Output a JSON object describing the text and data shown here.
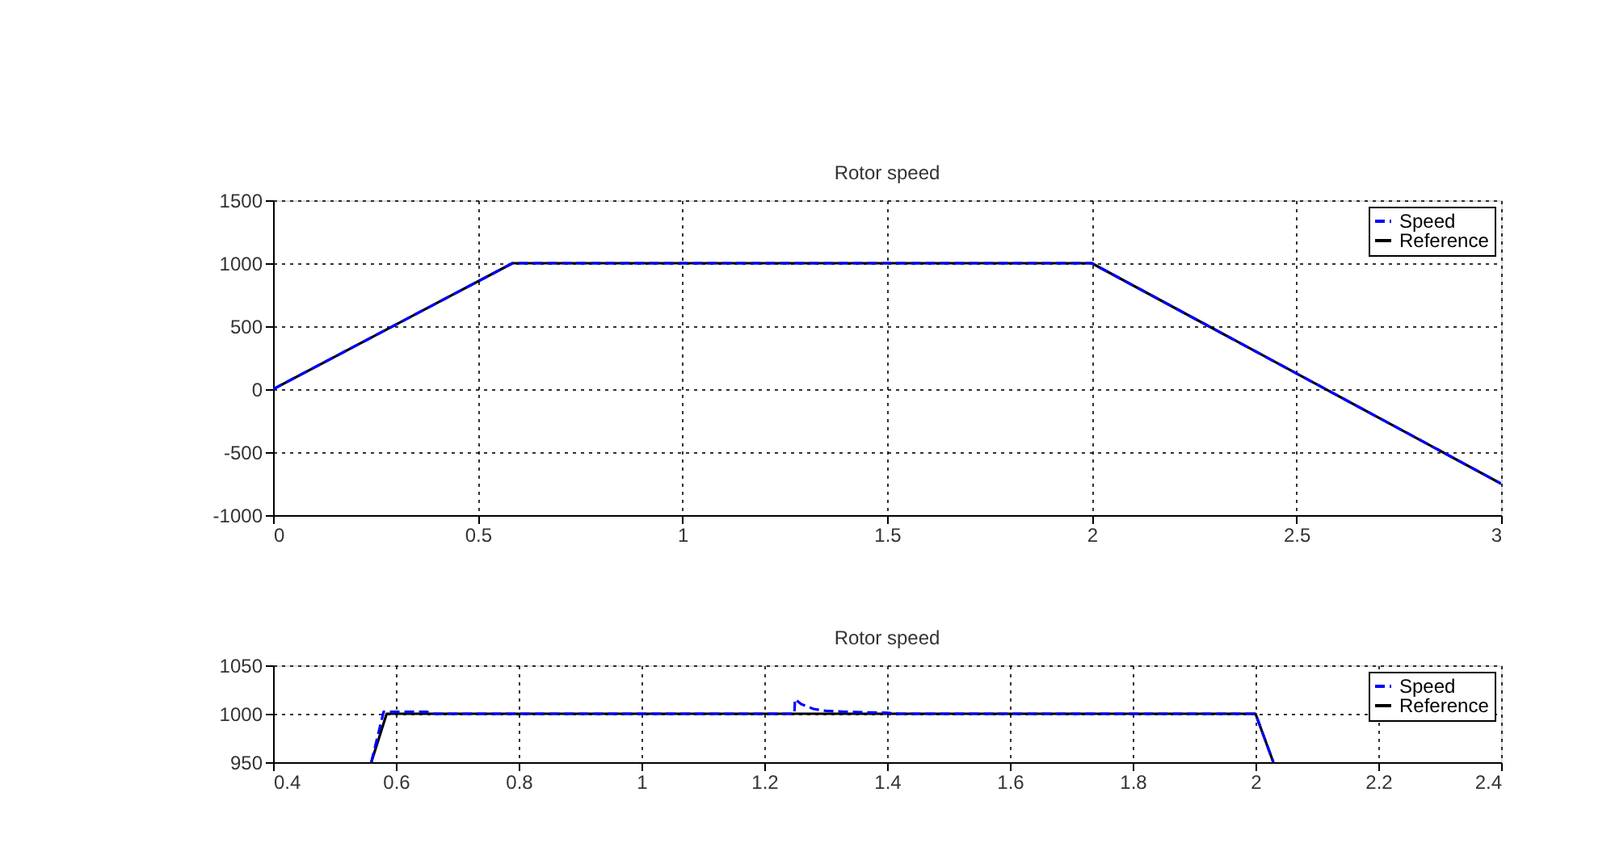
{
  "chart_data": [
    {
      "type": "line",
      "title": "Rotor speed",
      "xlim": [
        0,
        3
      ],
      "ylim": [
        -1000,
        1500
      ],
      "xticks": [
        0,
        0.5,
        1,
        1.5,
        2,
        2.5,
        3
      ],
      "yticks": [
        -1000,
        -500,
        0,
        500,
        1000,
        1500
      ],
      "grid": true,
      "legend": "top right",
      "marker": "none",
      "series": [
        {
          "name": "Speed",
          "color": "#0000ff",
          "line_style": "dashed",
          "x": [
            0,
            0.585,
            2,
            3
          ],
          "values": [
            0,
            1000,
            1000,
            -750
          ]
        },
        {
          "name": "Reference",
          "color": "#000000",
          "line_style": "solid",
          "x": [
            0,
            0.585,
            2,
            3
          ],
          "values": [
            0,
            1000,
            1000,
            -750
          ]
        }
      ]
    },
    {
      "type": "line",
      "title": "Rotor speed",
      "xlim": [
        0.4,
        2.4
      ],
      "ylim": [
        950,
        1050
      ],
      "xticks": [
        0.4,
        0.6,
        0.8,
        1,
        1.2,
        1.4,
        1.6,
        1.8,
        2,
        2.2,
        2.4
      ],
      "yticks": [
        950,
        1000,
        1050
      ],
      "grid": true,
      "legend": "top right",
      "marker": "none",
      "series": [
        {
          "name": "Speed",
          "color": "#0000ff",
          "line_style": "dashed",
          "x": [
            0.56,
            0.58,
            0.65,
            0.66,
            1.249,
            1.25,
            1.26,
            1.28,
            1.3,
            1.33,
            1.4,
            1.42,
            2,
            2.029
          ],
          "values": [
            950,
            1002,
            1002,
            1000,
            1000,
            1015,
            1010,
            1005,
            1003,
            1002,
            1001,
            1000,
            1000,
            950
          ]
        },
        {
          "name": "Reference",
          "color": "#000000",
          "line_style": "solid",
          "x": [
            0.56,
            0.585,
            2,
            2.029
          ],
          "values": [
            950,
            1000,
            1000,
            950
          ]
        }
      ]
    }
  ]
}
